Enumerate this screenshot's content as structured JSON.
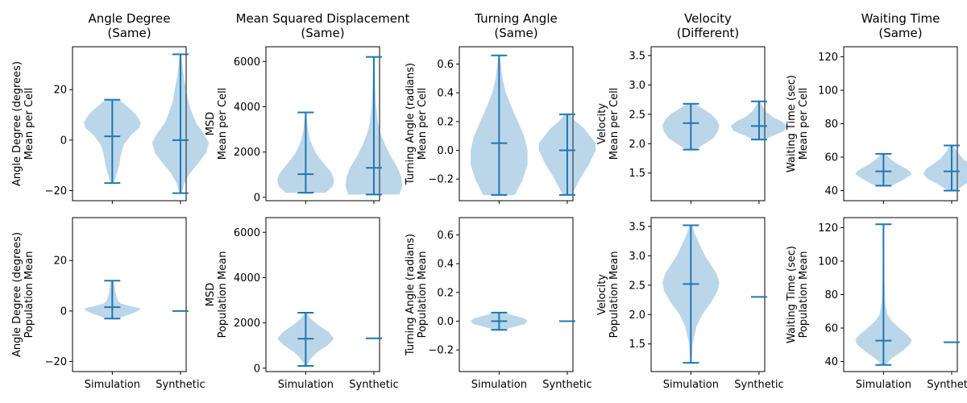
{
  "figure": {
    "background": "#ffffff"
  },
  "style": {
    "violin_fill": "#1f77b4",
    "violin_alpha": 0.3,
    "line_color": "#1f77b4",
    "axis_color": "#000000"
  },
  "chart_data": [
    {
      "type": "violin",
      "row": "top",
      "col": 0,
      "title": "Angle Degree\n(Same)",
      "ylabel": "Angle Degree (degrees)\nMean per Cell",
      "ylim": [
        -24,
        37
      ],
      "yticks": [
        -20,
        0,
        20
      ],
      "ytick_labels": [
        "−20",
        "0",
        "20"
      ],
      "categories": [
        "Simulation",
        "Synthetic"
      ],
      "show_xticklabels": false,
      "violins": [
        {
          "category": "Simulation",
          "min": -17,
          "max": 16,
          "mean": 1.5,
          "density": [
            [
              -17,
              0.03
            ],
            [
              -14,
              0.07
            ],
            [
              -10,
              0.12
            ],
            [
              -6,
              0.15
            ],
            [
              -2,
              0.2
            ],
            [
              2,
              0.33
            ],
            [
              5,
              0.48
            ],
            [
              7,
              0.5
            ],
            [
              10,
              0.42
            ],
            [
              13,
              0.28
            ],
            [
              16,
              0.12
            ]
          ]
        },
        {
          "category": "Synthetic",
          "min": -21,
          "max": 34,
          "mean": 0,
          "density": [
            [
              -21,
              0.02
            ],
            [
              -17,
              0.07
            ],
            [
              -13,
              0.17
            ],
            [
              -9,
              0.32
            ],
            [
              -5,
              0.45
            ],
            [
              -1,
              0.5
            ],
            [
              3,
              0.4
            ],
            [
              7,
              0.27
            ],
            [
              11,
              0.2
            ],
            [
              15,
              0.14
            ],
            [
              20,
              0.1
            ],
            [
              25,
              0.06
            ],
            [
              30,
              0.03
            ],
            [
              34,
              0.01
            ]
          ]
        }
      ]
    },
    {
      "type": "violin",
      "row": "top",
      "col": 1,
      "title": "Mean Squared Displacement\n(Same)",
      "ylabel": "MSD\nMean per Cell",
      "ylim": [
        -150,
        6650
      ],
      "yticks": [
        0,
        2000,
        4000,
        6000
      ],
      "ytick_labels": [
        "0",
        "2000",
        "4000",
        "6000"
      ],
      "categories": [
        "Simulation",
        "Synthetic"
      ],
      "show_xticklabels": false,
      "violins": [
        {
          "category": "Simulation",
          "min": 200,
          "max": 3750,
          "mean": 1020,
          "density": [
            [
              200,
              0.35
            ],
            [
              500,
              0.48
            ],
            [
              800,
              0.5
            ],
            [
              1100,
              0.45
            ],
            [
              1400,
              0.35
            ],
            [
              1700,
              0.25
            ],
            [
              2000,
              0.17
            ],
            [
              2500,
              0.08
            ],
            [
              3000,
              0.04
            ],
            [
              3750,
              0.01
            ]
          ]
        },
        {
          "category": "Synthetic",
          "min": 120,
          "max": 6200,
          "mean": 1300,
          "density": [
            [
              120,
              0.45
            ],
            [
              500,
              0.5
            ],
            [
              900,
              0.48
            ],
            [
              1300,
              0.42
            ],
            [
              1800,
              0.3
            ],
            [
              2300,
              0.2
            ],
            [
              2800,
              0.12
            ],
            [
              3300,
              0.07
            ],
            [
              4000,
              0.04
            ],
            [
              5000,
              0.02
            ],
            [
              6200,
              0.01
            ]
          ]
        }
      ]
    },
    {
      "type": "violin",
      "row": "top",
      "col": 2,
      "title": "Turning Angle\n(Same)",
      "ylabel": "Turning Angle (radians)\nMean per Cell",
      "ylim": [
        -0.35,
        0.72
      ],
      "yticks": [
        -0.2,
        0.0,
        0.2,
        0.4,
        0.6
      ],
      "ytick_labels": [
        "−0.2",
        "0.0",
        "0.2",
        "0.4",
        "0.6"
      ],
      "categories": [
        "Simulation",
        "Synthetic"
      ],
      "show_xticklabels": false,
      "violins": [
        {
          "category": "Simulation",
          "min": -0.31,
          "max": 0.66,
          "mean": 0.05,
          "density": [
            [
              -0.31,
              0.28
            ],
            [
              -0.2,
              0.42
            ],
            [
              -0.1,
              0.5
            ],
            [
              0.0,
              0.5
            ],
            [
              0.1,
              0.44
            ],
            [
              0.2,
              0.33
            ],
            [
              0.3,
              0.22
            ],
            [
              0.4,
              0.12
            ],
            [
              0.5,
              0.06
            ],
            [
              0.66,
              0.01
            ]
          ]
        },
        {
          "category": "Synthetic",
          "min": -0.31,
          "max": 0.25,
          "mean": 0.0,
          "density": [
            [
              -0.31,
              0.08
            ],
            [
              -0.2,
              0.22
            ],
            [
              -0.1,
              0.38
            ],
            [
              0.0,
              0.5
            ],
            [
              0.05,
              0.5
            ],
            [
              0.1,
              0.4
            ],
            [
              0.15,
              0.3
            ],
            [
              0.2,
              0.15
            ],
            [
              0.25,
              0.04
            ]
          ]
        }
      ]
    },
    {
      "type": "violin",
      "row": "top",
      "col": 3,
      "title": "Velocity\n(Different)",
      "ylabel": "Velocity\nMean per Cell",
      "ylim": [
        1.03,
        3.65
      ],
      "yticks": [
        1.5,
        2.0,
        2.5,
        3.0,
        3.5
      ],
      "ytick_labels": [
        "1.5",
        "2.0",
        "2.5",
        "3.0",
        "3.5"
      ],
      "categories": [
        "Simulation",
        "Synthetic"
      ],
      "show_xticklabels": false,
      "violins": [
        {
          "category": "Simulation",
          "min": 1.9,
          "max": 2.68,
          "mean": 2.35,
          "density": [
            [
              1.9,
              0.08
            ],
            [
              2.0,
              0.25
            ],
            [
              2.1,
              0.4
            ],
            [
              2.2,
              0.47
            ],
            [
              2.3,
              0.5
            ],
            [
              2.4,
              0.46
            ],
            [
              2.5,
              0.36
            ],
            [
              2.6,
              0.2
            ],
            [
              2.68,
              0.06
            ]
          ]
        },
        {
          "category": "Synthetic",
          "min": 2.07,
          "max": 2.72,
          "mean": 2.3,
          "density": [
            [
              2.07,
              0.1
            ],
            [
              2.15,
              0.28
            ],
            [
              2.22,
              0.45
            ],
            [
              2.3,
              0.5
            ],
            [
              2.38,
              0.4
            ],
            [
              2.45,
              0.25
            ],
            [
              2.55,
              0.12
            ],
            [
              2.65,
              0.05
            ],
            [
              2.72,
              0.02
            ]
          ]
        }
      ]
    },
    {
      "type": "violin",
      "row": "top",
      "col": 4,
      "title": "Waiting Time\n(Same)",
      "ylabel": "Waiting Time (sec)\nMean per Cell",
      "ylim": [
        34,
        126
      ],
      "yticks": [
        40,
        60,
        80,
        100,
        120
      ],
      "ytick_labels": [
        "40",
        "60",
        "80",
        "100",
        "120"
      ],
      "categories": [
        "Simulation",
        "Synthetic"
      ],
      "show_xticklabels": false,
      "violins": [
        {
          "category": "Simulation",
          "min": 43,
          "max": 62,
          "mean": 51.5,
          "density": [
            [
              43,
              0.15
            ],
            [
              46,
              0.32
            ],
            [
              48,
              0.42
            ],
            [
              50,
              0.5
            ],
            [
              52,
              0.45
            ],
            [
              54,
              0.35
            ],
            [
              56,
              0.24
            ],
            [
              59,
              0.12
            ],
            [
              62,
              0.04
            ]
          ]
        },
        {
          "category": "Synthetic",
          "min": 40,
          "max": 67,
          "mean": 51.5,
          "density": [
            [
              40,
              0.06
            ],
            [
              44,
              0.25
            ],
            [
              47,
              0.42
            ],
            [
              50,
              0.5
            ],
            [
              53,
              0.45
            ],
            [
              56,
              0.32
            ],
            [
              59,
              0.2
            ],
            [
              63,
              0.1
            ],
            [
              67,
              0.03
            ]
          ]
        }
      ]
    },
    {
      "type": "violin",
      "row": "bottom",
      "col": 0,
      "title": "",
      "ylabel": "Angle Degree (degrees)\nPopulation Mean",
      "ylim": [
        -24,
        37
      ],
      "yticks": [
        -20,
        0,
        20
      ],
      "ytick_labels": [
        "−20",
        "0",
        "20"
      ],
      "categories": [
        "Simulation",
        "Synthetic"
      ],
      "show_xticklabels": true,
      "violins": [
        {
          "category": "Simulation",
          "min": -3,
          "max": 12,
          "mean": 1.5,
          "density": [
            [
              -3,
              0.1
            ],
            [
              -2,
              0.22
            ],
            [
              -1,
              0.35
            ],
            [
              0,
              0.45
            ],
            [
              1,
              0.5
            ],
            [
              2,
              0.3
            ],
            [
              3,
              0.15
            ],
            [
              4,
              0.1
            ],
            [
              6,
              0.07
            ],
            [
              8,
              0.05
            ],
            [
              10,
              0.04
            ],
            [
              12,
              0.02
            ]
          ]
        },
        {
          "category": "Synthetic",
          "min": 0,
          "max": 0,
          "mean": 0,
          "density": []
        }
      ]
    },
    {
      "type": "violin",
      "row": "bottom",
      "col": 1,
      "title": "",
      "ylabel": "MSD\nPopulation Mean",
      "ylim": [
        -150,
        6650
      ],
      "yticks": [
        0,
        2000,
        4000,
        6000
      ],
      "ytick_labels": [
        "0",
        "2000",
        "4000",
        "6000"
      ],
      "categories": [
        "Simulation",
        "Synthetic"
      ],
      "show_xticklabels": true,
      "violins": [
        {
          "category": "Simulation",
          "min": 100,
          "max": 2450,
          "mean": 1300,
          "density": [
            [
              100,
              0.02
            ],
            [
              400,
              0.08
            ],
            [
              700,
              0.2
            ],
            [
              1000,
              0.38
            ],
            [
              1300,
              0.5
            ],
            [
              1600,
              0.4
            ],
            [
              1900,
              0.22
            ],
            [
              2200,
              0.08
            ],
            [
              2450,
              0.02
            ]
          ]
        },
        {
          "category": "Synthetic",
          "min": 1320,
          "max": 1320,
          "mean": 1320,
          "density": []
        }
      ]
    },
    {
      "type": "violin",
      "row": "bottom",
      "col": 2,
      "title": "",
      "ylabel": "Turning Angle (radians)\nPopulation Mean",
      "ylim": [
        -0.35,
        0.72
      ],
      "yticks": [
        -0.2,
        0.0,
        0.2,
        0.4,
        0.6
      ],
      "ytick_labels": [
        "−0.2",
        "0.0",
        "0.2",
        "0.4",
        "0.6"
      ],
      "categories": [
        "Simulation",
        "Synthetic"
      ],
      "show_xticklabels": true,
      "violins": [
        {
          "category": "Simulation",
          "min": -0.06,
          "max": 0.06,
          "mean": 0.0,
          "density": [
            [
              -0.06,
              0.08
            ],
            [
              -0.04,
              0.25
            ],
            [
              -0.02,
              0.45
            ],
            [
              0.0,
              0.5
            ],
            [
              0.02,
              0.45
            ],
            [
              0.04,
              0.25
            ],
            [
              0.06,
              0.08
            ]
          ]
        },
        {
          "category": "Synthetic",
          "min": 0.0,
          "max": 0.0,
          "mean": 0.0,
          "density": []
        }
      ]
    },
    {
      "type": "violin",
      "row": "bottom",
      "col": 3,
      "title": "",
      "ylabel": "Velocity\nPopulation Mean",
      "ylim": [
        1.03,
        3.65
      ],
      "yticks": [
        1.5,
        2.0,
        2.5,
        3.0,
        3.5
      ],
      "ytick_labels": [
        "1.5",
        "2.0",
        "2.5",
        "3.0",
        "3.5"
      ],
      "categories": [
        "Simulation",
        "Synthetic"
      ],
      "show_xticklabels": true,
      "violins": [
        {
          "category": "Simulation",
          "min": 1.18,
          "max": 3.52,
          "mean": 2.52,
          "density": [
            [
              1.18,
              0.01
            ],
            [
              1.5,
              0.03
            ],
            [
              1.8,
              0.1
            ],
            [
              2.0,
              0.2
            ],
            [
              2.2,
              0.35
            ],
            [
              2.4,
              0.47
            ],
            [
              2.55,
              0.5
            ],
            [
              2.7,
              0.45
            ],
            [
              2.85,
              0.35
            ],
            [
              3.0,
              0.25
            ],
            [
              3.2,
              0.15
            ],
            [
              3.35,
              0.08
            ],
            [
              3.52,
              0.02
            ]
          ]
        },
        {
          "category": "Synthetic",
          "min": 2.3,
          "max": 2.3,
          "mean": 2.3,
          "density": []
        }
      ]
    },
    {
      "type": "violin",
      "row": "bottom",
      "col": 4,
      "title": "",
      "ylabel": "Waiting Time (sec)\nPopulation Mean",
      "ylim": [
        34,
        126
      ],
      "yticks": [
        40,
        60,
        80,
        100,
        120
      ],
      "ytick_labels": [
        "40",
        "60",
        "80",
        "100",
        "120"
      ],
      "categories": [
        "Simulation",
        "Synthetic"
      ],
      "show_xticklabels": true,
      "violins": [
        {
          "category": "Simulation",
          "min": 38,
          "max": 122,
          "mean": 52.5,
          "density": [
            [
              38,
              0.03
            ],
            [
              42,
              0.15
            ],
            [
              46,
              0.32
            ],
            [
              50,
              0.46
            ],
            [
              53,
              0.5
            ],
            [
              56,
              0.42
            ],
            [
              60,
              0.28
            ],
            [
              64,
              0.15
            ],
            [
              68,
              0.07
            ],
            [
              75,
              0.03
            ],
            [
              90,
              0.015
            ],
            [
              122,
              0.005
            ]
          ]
        },
        {
          "category": "Synthetic",
          "min": 51.5,
          "max": 51.5,
          "mean": 51.5,
          "density": []
        }
      ]
    }
  ]
}
